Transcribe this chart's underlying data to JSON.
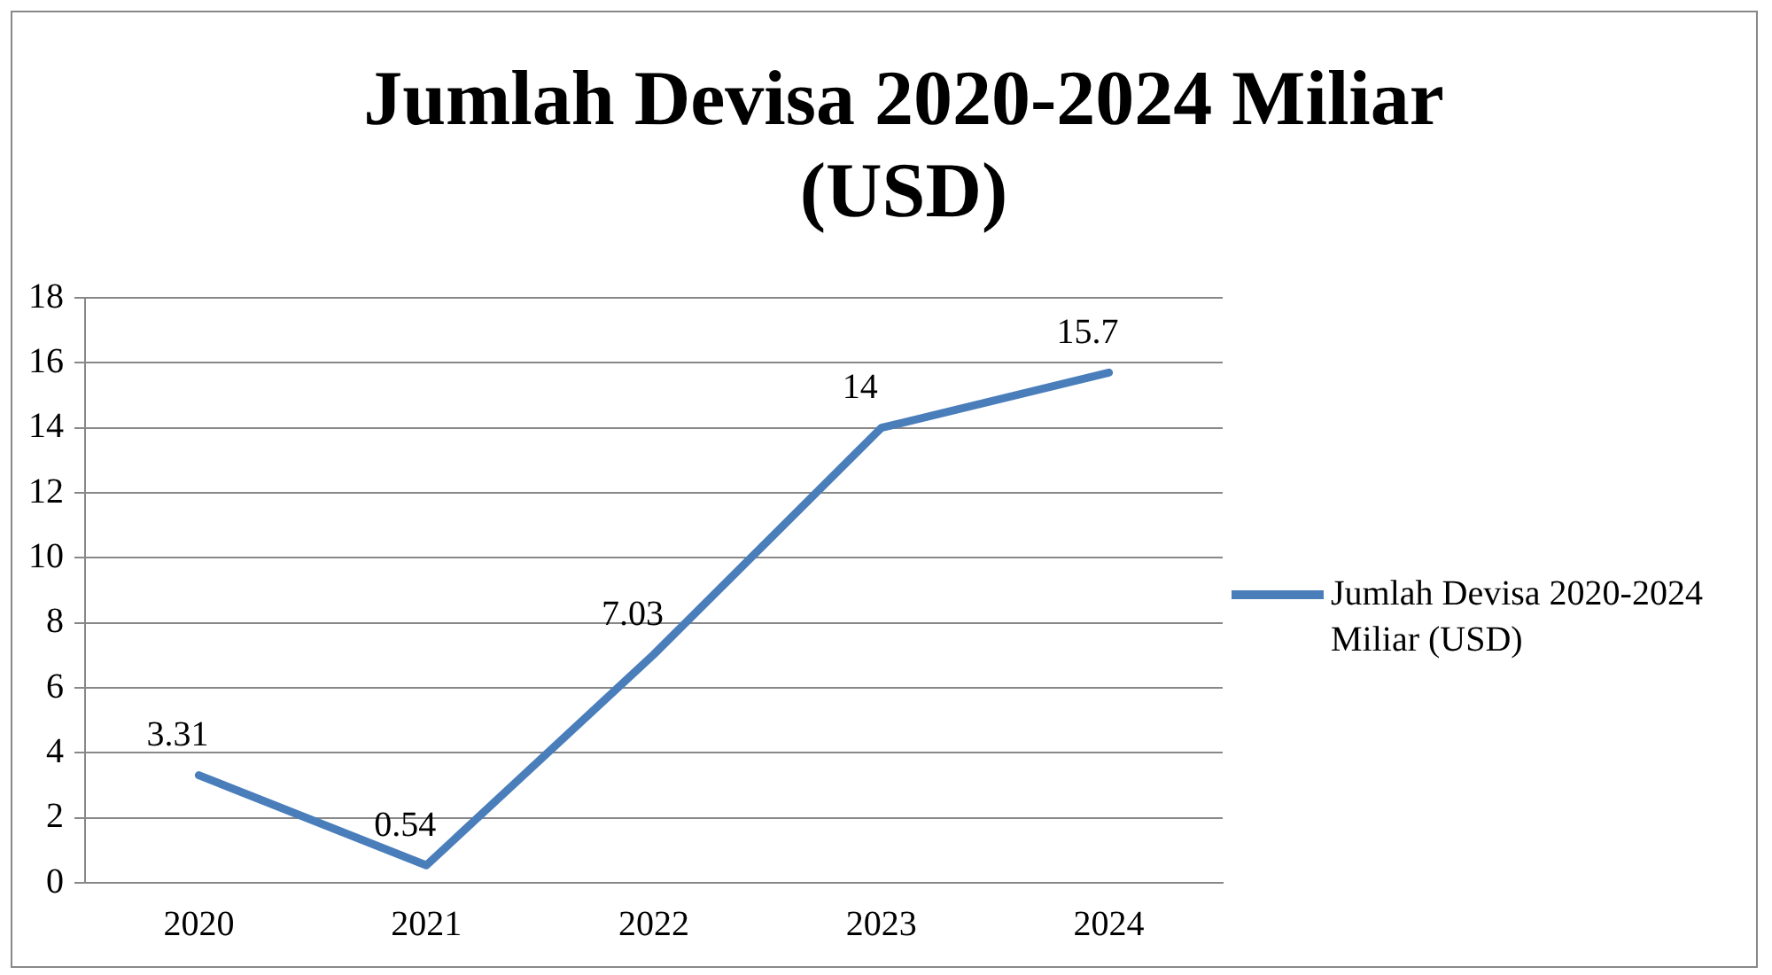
{
  "chart_data": {
    "type": "line",
    "title": "Jumlah Devisa 2020-2024 Miliar (USD)",
    "categories": [
      "2020",
      "2021",
      "2022",
      "2023",
      "2024"
    ],
    "series": [
      {
        "name": "Jumlah Devisa 2020-2024 Miliar (USD)",
        "color": "#4a7ebb",
        "values": [
          3.31,
          0.54,
          7.03,
          14,
          15.7
        ]
      }
    ],
    "ylim": [
      0,
      18
    ],
    "yticks": [
      0,
      2,
      4,
      6,
      8,
      10,
      12,
      14,
      16,
      18
    ],
    "grid": "y",
    "legend": "right",
    "marker": "none",
    "data_labels": true
  }
}
